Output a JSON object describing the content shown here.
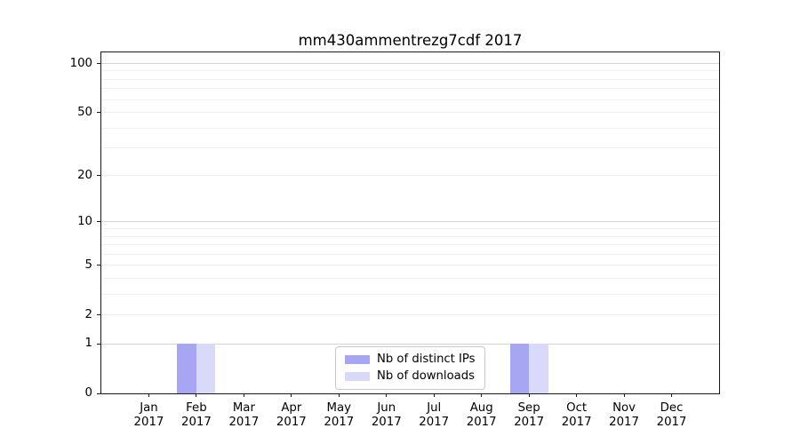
{
  "chart_data": {
    "type": "bar",
    "title": "mm430ammentrezg7cdf 2017",
    "categories": [
      "Jan 2017",
      "Feb 2017",
      "Mar 2017",
      "Apr 2017",
      "May 2017",
      "Jun 2017",
      "Jul 2017",
      "Aug 2017",
      "Sep 2017",
      "Oct 2017",
      "Nov 2017",
      "Dec 2017"
    ],
    "x_tick_labels": [
      [
        "Jan",
        "2017"
      ],
      [
        "Feb",
        "2017"
      ],
      [
        "Mar",
        "2017"
      ],
      [
        "Apr",
        "2017"
      ],
      [
        "May",
        "2017"
      ],
      [
        "Jun",
        "2017"
      ],
      [
        "Jul",
        "2017"
      ],
      [
        "Aug",
        "2017"
      ],
      [
        "Sep",
        "2017"
      ],
      [
        "Oct",
        "2017"
      ],
      [
        "Nov",
        "2017"
      ],
      [
        "Dec",
        "2017"
      ]
    ],
    "series": [
      {
        "name": "Nb of distinct IPs",
        "color": "#a6a6f3",
        "values": [
          0,
          1,
          0,
          0,
          0,
          0,
          0,
          0,
          1,
          0,
          0,
          0
        ]
      },
      {
        "name": "Nb of downloads",
        "color": "#d9d9f9",
        "values": [
          0,
          1,
          0,
          0,
          0,
          0,
          0,
          0,
          1,
          0,
          0,
          0
        ]
      }
    ],
    "xlabel": "",
    "ylabel": "",
    "y_scale": "log1p",
    "ylim": [
      0,
      117
    ],
    "y_ticks": [
      0,
      1,
      2,
      5,
      10,
      20,
      50,
      100
    ],
    "y_major_gridlines": [
      1,
      10,
      100
    ],
    "y_minor_gridlines": [
      2,
      3,
      4,
      5,
      6,
      7,
      8,
      9,
      20,
      30,
      40,
      50,
      60,
      70,
      80,
      90
    ],
    "grid": "horizontal",
    "legend_position": "lower center inside"
  },
  "colors": {
    "spine": "#1a1a1a",
    "major_grid": "#d4d4d4",
    "minor_grid": "#efefef",
    "background": "#ffffff"
  }
}
